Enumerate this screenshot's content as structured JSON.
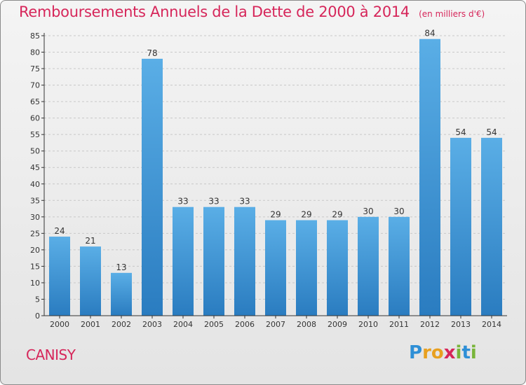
{
  "title": "Remboursements Annuels de la Dette de 2000 à 2014",
  "unit_note": "(en milliers d'€)",
  "town": "CANISY",
  "logo": {
    "text": "Proxiti",
    "letters": [
      {
        "ch": "P",
        "color": "#2e8fd6"
      },
      {
        "ch": "r",
        "color": "#e8a020"
      },
      {
        "ch": "o",
        "color": "#e8a020"
      },
      {
        "ch": "x",
        "color": "#d6265a"
      },
      {
        "ch": "i",
        "color": "#79b53a"
      },
      {
        "ch": "t",
        "color": "#2e8fd6"
      },
      {
        "ch": "i",
        "color": "#79b53a"
      }
    ]
  },
  "colors": {
    "accent": "#d6265a",
    "bar_top": "#5aaee6",
    "bar_bottom": "#2a7cc0",
    "grid": "#c8c8c8",
    "axis": "#333333",
    "text": "#333333"
  },
  "chart_data": {
    "type": "bar",
    "title": "Remboursements Annuels de la Dette de 2000 à 2014",
    "xlabel": "",
    "ylabel": "",
    "categories": [
      "2000",
      "2001",
      "2002",
      "2003",
      "2004",
      "2005",
      "2006",
      "2007",
      "2008",
      "2009",
      "2010",
      "2011",
      "2012",
      "2013",
      "2014"
    ],
    "values": [
      24,
      21,
      13,
      78,
      33,
      33,
      33,
      29,
      29,
      29,
      30,
      30,
      84,
      54,
      54
    ],
    "ylim": [
      0,
      85
    ],
    "yticks": [
      0,
      5,
      10,
      15,
      20,
      25,
      30,
      35,
      40,
      45,
      50,
      55,
      60,
      65,
      70,
      75,
      80,
      85
    ],
    "grid": true,
    "legend": "none"
  }
}
